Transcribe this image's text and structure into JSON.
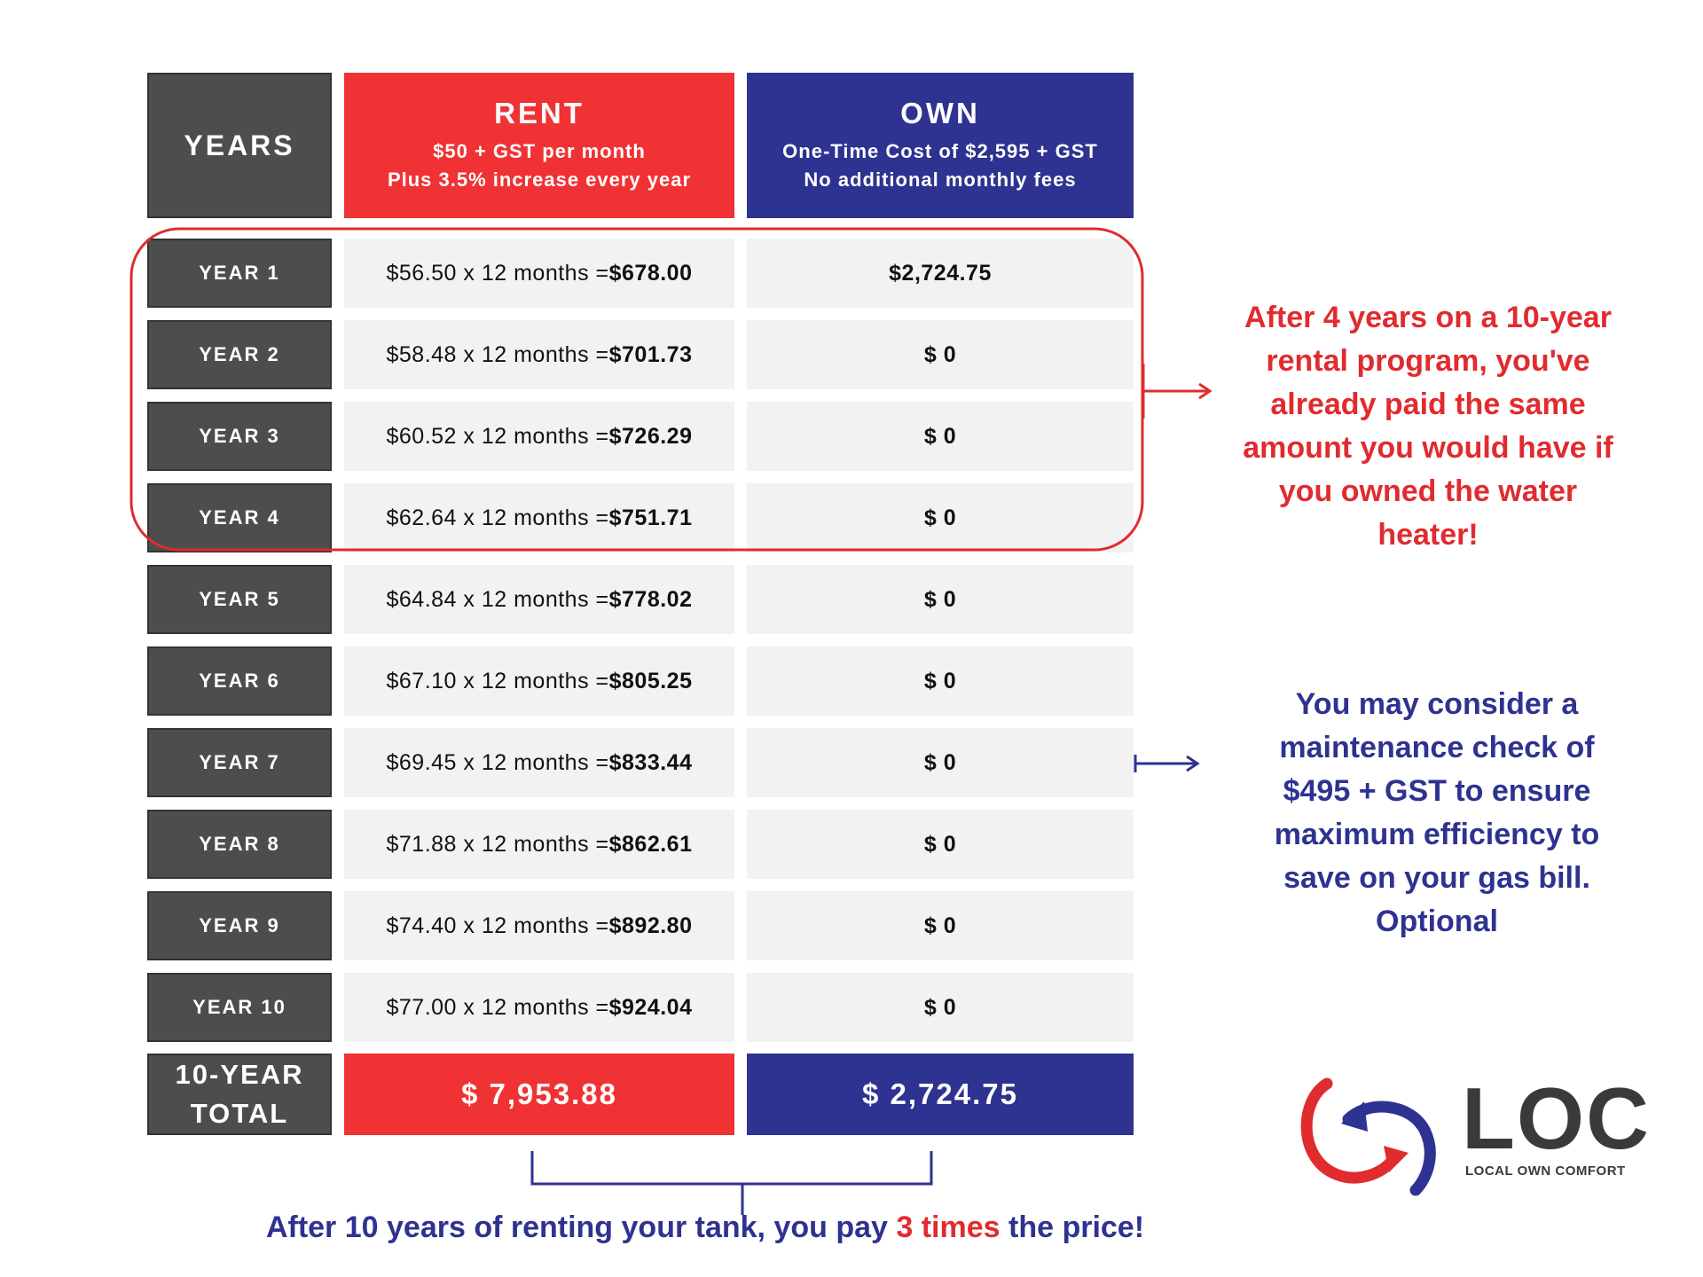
{
  "header": {
    "years": "YEARS",
    "rent": {
      "title": "RENT",
      "line1": "$50 + GST per month",
      "line2": "Plus 3.5% increase every year"
    },
    "own": {
      "title": "OWN",
      "line1": "One-Time Cost of $2,595 + GST",
      "line2": "No additional monthly fees"
    }
  },
  "rows": [
    {
      "year": "YEAR 1",
      "rent_calc": "$56.50 x 12 months = ",
      "rent_total": "$678.00",
      "own": "$2,724.75"
    },
    {
      "year": "YEAR 2",
      "rent_calc": "$58.48 x 12 months = ",
      "rent_total": "$701.73",
      "own": "$ 0"
    },
    {
      "year": "YEAR 3",
      "rent_calc": "$60.52 x 12 months = ",
      "rent_total": "$726.29",
      "own": "$ 0"
    },
    {
      "year": "YEAR 4",
      "rent_calc": "$62.64 x 12 months = ",
      "rent_total": "$751.71",
      "own": "$ 0"
    },
    {
      "year": "YEAR 5",
      "rent_calc": "$64.84 x 12 months = ",
      "rent_total": "$778.02",
      "own": "$ 0"
    },
    {
      "year": "YEAR 6",
      "rent_calc": "$67.10 x 12 months = ",
      "rent_total": "$805.25",
      "own": "$ 0"
    },
    {
      "year": "YEAR 7",
      "rent_calc": "$69.45 x 12 months = ",
      "rent_total": "$833.44",
      "own": "$ 0"
    },
    {
      "year": "YEAR 8",
      "rent_calc": "$71.88 x 12 months = ",
      "rent_total": "$862.61",
      "own": "$ 0"
    },
    {
      "year": "YEAR 9",
      "rent_calc": "$74.40 x 12 months = ",
      "rent_total": "$892.80",
      "own": "$ 0"
    },
    {
      "year": "YEAR 10",
      "rent_calc": "$77.00 x 12 months = ",
      "rent_total": "$924.04",
      "own": "$ 0"
    }
  ],
  "totals": {
    "label_line1": "10-YEAR",
    "label_line2": "TOTAL",
    "rent": "$ 7,953.88",
    "own": "$ 2,724.75"
  },
  "callouts": {
    "red": [
      "After 4 years on a 10-year",
      "rental program, you've",
      "already paid the same",
      "amount you would have if",
      "you owned the water",
      "heater!"
    ],
    "blue": [
      "You may consider a",
      "maintenance check of",
      "$495 + GST to ensure",
      "maximum efficiency to",
      "save on your gas bill.",
      "Optional"
    ]
  },
  "bottom_note": {
    "before": "After 10 years of renting your tank, you pay ",
    "highlight": "3 times",
    "after": " the price!"
  },
  "logo": {
    "name": "LOC",
    "tagline": "LOCAL OWN COMFORT"
  },
  "colors": {
    "rent_red": "#f03234",
    "own_blue": "#2e3290",
    "years_gray": "#4d4d4d",
    "cell_bg": "#f2f2f2"
  }
}
